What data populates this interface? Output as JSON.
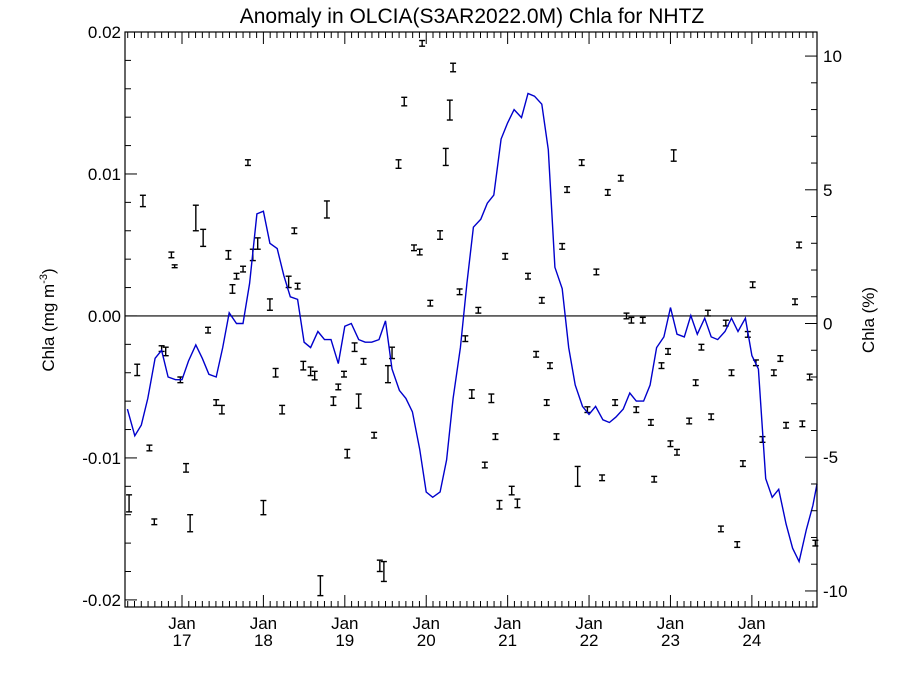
{
  "chart_data": {
    "type": "line",
    "title": "Anomaly in OLCIA(S3AR2022.0M) Chla for NHTZ",
    "ylabel": "Chla (mg m",
    "ylabel_sup": "-3",
    "ylabel_close": ")",
    "y2label": "Chla (%)",
    "xlim": [
      2016.3,
      2024.8
    ],
    "ylim": [
      -0.0205,
      0.02
    ],
    "y2lim": [
      -10.6,
      10.9
    ],
    "x_ticks": [
      {
        "x": 2017.0,
        "month": "Jan",
        "year": "17"
      },
      {
        "x": 2018.0,
        "month": "Jan",
        "year": "18"
      },
      {
        "x": 2019.0,
        "month": "Jan",
        "year": "19"
      },
      {
        "x": 2020.0,
        "month": "Jan",
        "year": "20"
      },
      {
        "x": 2021.0,
        "month": "Jan",
        "year": "21"
      },
      {
        "x": 2022.0,
        "month": "Jan",
        "year": "22"
      },
      {
        "x": 2023.0,
        "month": "Jan",
        "year": "23"
      },
      {
        "x": 2024.0,
        "month": "Jan",
        "year": "24"
      }
    ],
    "y_ticks": [
      {
        "value": 0.02,
        "label": "0.02"
      },
      {
        "value": 0.01,
        "label": "0.01"
      },
      {
        "value": 0.0,
        "label": "0.00"
      },
      {
        "value": -0.01,
        "label": "-0.01"
      },
      {
        "value": -0.02,
        "label": "-0.02"
      }
    ],
    "y2_ticks": [
      {
        "value": 10,
        "label": "10"
      },
      {
        "value": 5,
        "label": "5"
      },
      {
        "value": 0,
        "label": "0"
      },
      {
        "value": -5,
        "label": "-5"
      },
      {
        "value": -10,
        "label": "-10"
      }
    ],
    "zero_line": true,
    "series": [
      {
        "style": "line",
        "color": "#0000cc",
        "axis": "right",
        "x": [
          2016.33,
          2016.42,
          2016.5,
          2016.58,
          2016.67,
          2016.75,
          2016.83,
          2016.92,
          2017.0,
          2017.08,
          2017.17,
          2017.25,
          2017.33,
          2017.42,
          2017.5,
          2017.58,
          2017.67,
          2017.75,
          2017.83,
          2017.92,
          2018.0,
          2018.08,
          2018.17,
          2018.25,
          2018.33,
          2018.42,
          2018.5,
          2018.58,
          2018.67,
          2018.75,
          2018.83,
          2018.92,
          2019.0,
          2019.08,
          2019.17,
          2019.25,
          2019.33,
          2019.42,
          2019.5,
          2019.58,
          2019.67,
          2019.75,
          2019.83,
          2019.92,
          2020.0,
          2020.08,
          2020.17,
          2020.25,
          2020.33,
          2020.42,
          2020.5,
          2020.58,
          2020.67,
          2020.75,
          2020.83,
          2020.92,
          2021.0,
          2021.08,
          2021.17,
          2021.25,
          2021.33,
          2021.42,
          2021.5,
          2021.58,
          2021.67,
          2021.75,
          2021.83,
          2021.92,
          2022.0,
          2022.08,
          2022.17,
          2022.25,
          2022.33,
          2022.42,
          2022.5,
          2022.58,
          2022.67,
          2022.75,
          2022.83,
          2022.92,
          2023.0,
          2023.08,
          2023.17,
          2023.25,
          2023.33,
          2023.42,
          2023.5,
          2023.58,
          2023.67,
          2023.75,
          2023.83,
          2023.92,
          2024.0,
          2024.08,
          2024.17,
          2024.25,
          2024.33,
          2024.42,
          2024.5,
          2024.58,
          2024.67,
          2024.75,
          2024.8
        ],
        "y": [
          -3.2,
          -4.2,
          -3.8,
          -2.8,
          -1.3,
          -1.0,
          -2.0,
          -2.1,
          -2.1,
          -1.4,
          -0.8,
          -1.3,
          -1.9,
          -2.0,
          -0.9,
          0.4,
          0.0,
          0.0,
          1.5,
          4.1,
          4.2,
          3.0,
          2.8,
          1.8,
          1.0,
          0.9,
          -0.7,
          -0.9,
          -0.3,
          -0.6,
          -0.6,
          -1.5,
          -0.1,
          0.0,
          -0.6,
          -0.7,
          -0.7,
          -0.6,
          0.1,
          -1.7,
          -2.5,
          -2.8,
          -3.3,
          -4.7,
          -6.3,
          -6.5,
          -6.3,
          -5.1,
          -2.8,
          -0.9,
          1.5,
          3.6,
          3.9,
          4.5,
          4.8,
          6.9,
          7.5,
          8.0,
          7.7,
          8.6,
          8.5,
          8.2,
          6.5,
          2.1,
          1.3,
          -0.9,
          -2.3,
          -3.1,
          -3.4,
          -3.1,
          -3.6,
          -3.7,
          -3.5,
          -3.2,
          -2.6,
          -2.9,
          -2.9,
          -2.3,
          -0.9,
          -0.5,
          0.6,
          -0.4,
          -0.5,
          0.3,
          -0.4,
          0.2,
          -0.5,
          -0.6,
          -0.3,
          0.2,
          -0.3,
          0.2,
          -1.2,
          -1.7,
          -5.8,
          -6.5,
          -6.2,
          -7.5,
          -8.4,
          -8.9,
          -7.7,
          -6.8,
          -6.0
        ]
      },
      {
        "style": "errorbar",
        "color": "#000000",
        "axis": "left",
        "x": [
          2016.35,
          2016.45,
          2016.52,
          2016.6,
          2016.66,
          2016.75,
          2016.8,
          2016.87,
          2016.91,
          2016.98,
          2017.05,
          2017.1,
          2017.17,
          2017.26,
          2017.32,
          2017.42,
          2017.49,
          2017.57,
          2017.62,
          2017.67,
          2017.75,
          2017.81,
          2017.87,
          2017.93,
          2018.0,
          2018.08,
          2018.15,
          2018.23,
          2018.31,
          2018.38,
          2018.42,
          2018.49,
          2018.58,
          2018.63,
          2018.7,
          2018.78,
          2018.86,
          2018.92,
          2018.99,
          2019.03,
          2019.12,
          2019.17,
          2019.23,
          2019.36,
          2019.43,
          2019.48,
          2019.53,
          2019.58,
          2019.66,
          2019.73,
          2019.85,
          2019.92,
          2019.95,
          2020.05,
          2020.17,
          2020.24,
          2020.29,
          2020.33,
          2020.41,
          2020.48,
          2020.56,
          2020.64,
          2020.72,
          2020.8,
          2020.85,
          2020.9,
          2020.97,
          2021.05,
          2021.12,
          2021.25,
          2021.35,
          2021.42,
          2021.48,
          2021.52,
          2021.6,
          2021.67,
          2021.73,
          2021.86,
          2021.91,
          2021.98,
          2022.09,
          2022.16,
          2022.23,
          2022.32,
          2022.39,
          2022.46,
          2022.52,
          2022.58,
          2022.66,
          2022.76,
          2022.8,
          2022.89,
          2022.97,
          2023.0,
          2023.04,
          2023.08,
          2023.23,
          2023.31,
          2023.38,
          2023.46,
          2023.5,
          2023.62,
          2023.68,
          2023.75,
          2023.82,
          2023.89,
          2023.95,
          2024.01,
          2024.05,
          2024.13,
          2024.27,
          2024.35,
          2024.42,
          2024.53,
          2024.58,
          2024.62,
          2024.71,
          2024.78
        ],
        "y": [
          -0.0132,
          -0.0038,
          0.0081,
          -0.0093,
          -0.0145,
          -0.0023,
          -0.0025,
          0.0043,
          0.0035,
          -0.0045,
          -0.0107,
          -0.0146,
          0.0069,
          0.0055,
          -0.001,
          -0.0061,
          -0.0066,
          0.0043,
          0.0019,
          0.0028,
          0.0033,
          0.0108,
          0.0043,
          0.0051,
          -0.0135,
          0.0008,
          -0.004,
          -0.0066,
          0.0024,
          0.006,
          0.0021,
          -0.0035,
          -0.0039,
          -0.0042,
          -0.019,
          0.0075,
          -0.006,
          -0.005,
          -0.0041,
          -0.0097,
          -0.0022,
          -0.006,
          -0.0032,
          -0.0084,
          -0.0176,
          -0.018,
          -0.0041,
          -0.0026,
          0.0107,
          0.0151,
          0.0048,
          0.0045,
          0.0192,
          0.0009,
          0.0057,
          0.0112,
          0.0145,
          0.0175,
          0.0017,
          -0.0016,
          -0.0055,
          0.0004,
          -0.0105,
          -0.0058,
          -0.0085,
          -0.0133,
          0.0042,
          -0.0123,
          -0.0132,
          0.0028,
          -0.0027,
          0.0011,
          -0.0061,
          -0.0035,
          -0.0085,
          0.0049,
          0.0089,
          -0.0113,
          0.0108,
          -0.0066,
          0.0031,
          -0.0114,
          0.0087,
          -0.0061,
          0.0097,
          0.0,
          -0.0003,
          -0.0066,
          -0.0003,
          -0.0075,
          -0.0115,
          -0.0035,
          -0.0025,
          -0.009,
          0.0113,
          -0.0096,
          -0.0074,
          -0.0047,
          -0.0022,
          0.0002,
          -0.0071,
          -0.015,
          -0.0005,
          -0.004,
          -0.0161,
          -0.0104,
          -0.0013,
          0.0022,
          -0.0033,
          -0.0087,
          -0.004,
          -0.003,
          -0.0077,
          0.001,
          0.005,
          -0.0076,
          -0.0043,
          -0.016
        ],
        "err": [
          0.0006,
          0.0004,
          0.0004,
          0.0002,
          0.0002,
          0.0002,
          0.0003,
          0.0002,
          0.0001,
          0.0002,
          0.0003,
          0.0006,
          0.0009,
          0.0006,
          0.0002,
          0.0002,
          0.0003,
          0.0003,
          0.0003,
          0.0002,
          0.0002,
          0.0002,
          0.0004,
          0.0004,
          0.0005,
          0.0004,
          0.0003,
          0.0003,
          0.0004,
          0.0002,
          0.0002,
          0.0003,
          0.0003,
          0.0003,
          0.0007,
          0.0006,
          0.0003,
          0.0002,
          0.0002,
          0.0003,
          0.0003,
          0.0005,
          0.0002,
          0.0002,
          0.0004,
          0.0007,
          0.0006,
          0.0004,
          0.0003,
          0.0003,
          0.0002,
          0.0002,
          0.0002,
          0.0002,
          0.0003,
          0.0006,
          0.0007,
          0.0003,
          0.0002,
          0.0002,
          0.0003,
          0.0002,
          0.0002,
          0.0003,
          0.0002,
          0.0003,
          0.0002,
          0.0003,
          0.0003,
          0.0002,
          0.0002,
          0.0002,
          0.0002,
          0.0002,
          0.0002,
          0.0002,
          0.0002,
          0.0007,
          0.0002,
          0.0002,
          0.0002,
          0.0002,
          0.0002,
          0.0002,
          0.0002,
          0.0002,
          0.0002,
          0.0002,
          0.0002,
          0.0002,
          0.0002,
          0.0002,
          0.0002,
          0.0002,
          0.0004,
          0.0002,
          0.0002,
          0.0002,
          0.0002,
          0.0002,
          0.0002,
          0.0002,
          0.0002,
          0.0002,
          0.0002,
          0.0002,
          0.0002,
          0.0002,
          0.0002,
          0.0002,
          0.0002,
          0.0002,
          0.0002,
          0.0002,
          0.0002,
          0.0002,
          0.0002,
          0.0002
        ]
      }
    ]
  }
}
